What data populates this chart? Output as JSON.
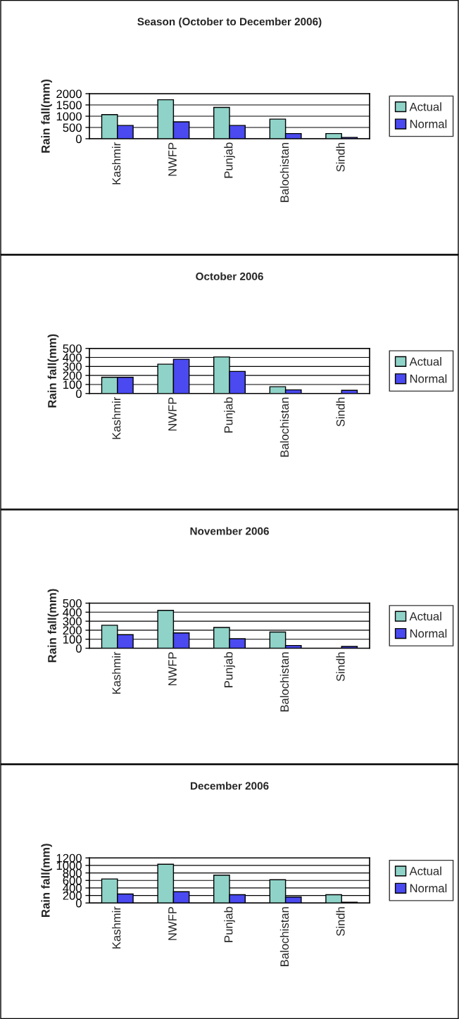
{
  "chart_data": [
    {
      "type": "bar",
      "title": "Season (October to December 2006)",
      "ylabel": "Rain fall(mm)",
      "categories": [
        "Kashmir",
        "NWFP",
        "Punjab",
        "Balochistan",
        "Sindh"
      ],
      "series": [
        {
          "name": "Actual",
          "color": "#8fd3c8",
          "values": [
            1070,
            1730,
            1390,
            870,
            230
          ]
        },
        {
          "name": "Normal",
          "color": "#4a4af0",
          "values": [
            590,
            750,
            590,
            230,
            60
          ]
        }
      ],
      "ylim": [
        0,
        2000
      ],
      "yticks": [
        0,
        500,
        1000,
        1500,
        2000
      ],
      "grid": "y",
      "legend": "right"
    },
    {
      "type": "bar",
      "title": "October 2006",
      "ylabel": "Rain fall(mm)",
      "categories": [
        "Kashmir",
        "NWFP",
        "Punjab",
        "Balochistan",
        "Sindh"
      ],
      "series": [
        {
          "name": "Actual",
          "color": "#8fd3c8",
          "values": [
            180,
            325,
            405,
            75,
            0
          ]
        },
        {
          "name": "Normal",
          "color": "#4a4af0",
          "values": [
            180,
            380,
            245,
            40,
            35
          ]
        }
      ],
      "ylim": [
        0,
        500
      ],
      "yticks": [
        0,
        100,
        200,
        300,
        400,
        500
      ],
      "grid": "y",
      "legend": "right"
    },
    {
      "type": "bar",
      "title": "November 2006",
      "ylabel": "Rain fall(mm)",
      "categories": [
        "Kashmir",
        "NWFP",
        "Punjab",
        "Balochistan",
        "Sindh"
      ],
      "series": [
        {
          "name": "Actual",
          "color": "#8fd3c8",
          "values": [
            255,
            420,
            230,
            180,
            0
          ]
        },
        {
          "name": "Normal",
          "color": "#4a4af0",
          "values": [
            150,
            170,
            105,
            30,
            20
          ]
        }
      ],
      "ylim": [
        0,
        500
      ],
      "yticks": [
        0,
        100,
        200,
        300,
        400,
        500
      ],
      "grid": "y",
      "legend": "right"
    },
    {
      "type": "bar",
      "title": "December 2006",
      "ylabel": "Rain fall(mm)",
      "categories": [
        "Kashmir",
        "NWFP",
        "Punjab",
        "Balochistan",
        "Sindh"
      ],
      "series": [
        {
          "name": "Actual",
          "color": "#8fd3c8",
          "values": [
            640,
            1030,
            740,
            620,
            220
          ]
        },
        {
          "name": "Normal",
          "color": "#4a4af0",
          "values": [
            240,
            300,
            220,
            160,
            20
          ]
        }
      ],
      "ylim": [
        0,
        1200
      ],
      "yticks": [
        0,
        200,
        400,
        600,
        800,
        1000,
        1200
      ],
      "grid": "y",
      "legend": "right"
    }
  ]
}
